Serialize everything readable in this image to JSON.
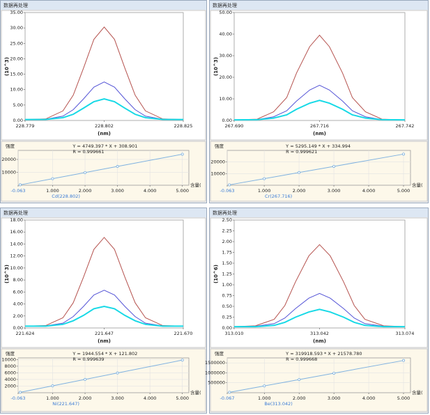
{
  "window_titles": [
    "数据再处理",
    "数据再处理",
    "数据再处理",
    "数据再处理"
  ],
  "chart_data": [
    {
      "type": "line",
      "ylabel": "(10^3)",
      "xlabel": "(nm)",
      "xlim": [
        228.779,
        228.825
      ],
      "xticks": [
        228.779,
        228.802,
        228.825
      ],
      "ylim": [
        0,
        35
      ],
      "yticks": [
        {
          "value": 0,
          "label": "0.00"
        },
        {
          "value": 5,
          "label": "5.00"
        },
        {
          "value": 10,
          "label": "10.00"
        },
        {
          "value": 15,
          "label": "15.00"
        },
        {
          "value": 20,
          "label": "20.00"
        },
        {
          "value": 25,
          "label": "25.00"
        },
        {
          "value": 30,
          "label": "30.00"
        },
        {
          "value": 35,
          "label": "35.00"
        }
      ],
      "x": [
        228.779,
        228.785,
        228.79,
        228.793,
        228.796,
        228.799,
        228.802,
        228.805,
        228.808,
        228.811,
        228.814,
        228.819,
        228.825
      ],
      "series": [
        {
          "color": "#b5524e",
          "values": [
            0.3,
            0.5,
            3.1,
            8.2,
            17.0,
            26.3,
            30.3,
            26.3,
            17.0,
            8.2,
            3.1,
            0.5,
            0.3
          ]
        },
        {
          "color": "#5454d6",
          "values": [
            0.3,
            0.4,
            1.4,
            3.5,
            7.0,
            10.8,
            12.5,
            10.8,
            7.0,
            3.5,
            1.4,
            0.4,
            0.3
          ]
        },
        {
          "color": "#17d9e6",
          "values": [
            0.3,
            0.35,
            0.9,
            2.0,
            4.0,
            6.1,
            7.0,
            6.1,
            4.0,
            2.0,
            0.9,
            0.35,
            0.3
          ]
        }
      ]
    },
    {
      "type": "line",
      "ylabel": "强度",
      "xlabel": "含量(",
      "caption": "Cd(228.802)",
      "grid": true,
      "markers": true,
      "annotations": [
        "Y = 4749.397 * X + 308.901",
        "R = 0.999661"
      ],
      "xlim": [
        -0.063,
        5.2
      ],
      "xticks": [
        -0.063,
        {
          "value": 1,
          "label": "1.000"
        },
        {
          "value": 2,
          "label": "2.000"
        },
        {
          "value": 3,
          "label": "3.000"
        },
        {
          "value": 4,
          "label": "4.000"
        },
        {
          "value": 5,
          "label": "5.000"
        }
      ],
      "ylim": [
        0,
        27000
      ],
      "yticks": [
        10000,
        20000
      ],
      "x": [
        0,
        1,
        2,
        3,
        5
      ],
      "series": [
        {
          "color": "#7fb2e0",
          "values": [
            309,
            5058,
            9808,
            14557,
            24056
          ]
        }
      ]
    },
    {
      "type": "line",
      "ylabel": "(10^3)",
      "xlabel": "(nm)",
      "xlim": [
        267.69,
        267.742
      ],
      "xticks": [
        {
          "value": 267.69,
          "label": "267.690"
        },
        267.716,
        267.742
      ],
      "ylim": [
        0,
        50
      ],
      "yticks": [
        {
          "value": 0,
          "label": "0.00"
        },
        {
          "value": 10,
          "label": "10.00"
        },
        {
          "value": 20,
          "label": "20.00"
        },
        {
          "value": 30,
          "label": "30.00"
        },
        {
          "value": 40,
          "label": "40.00"
        },
        {
          "value": 50,
          "label": "50.00"
        }
      ],
      "x": [
        267.69,
        267.697,
        267.702,
        267.706,
        267.709,
        267.713,
        267.716,
        267.719,
        267.723,
        267.726,
        267.73,
        267.735,
        267.742
      ],
      "series": [
        {
          "color": "#b5524e",
          "values": [
            0.3,
            0.6,
            4.0,
            10.6,
            22.0,
            34.2,
            39.5,
            34.2,
            22.0,
            10.6,
            4.0,
            0.6,
            0.3
          ]
        },
        {
          "color": "#5454d6",
          "values": [
            0.3,
            0.4,
            1.7,
            4.5,
            9.0,
            14.1,
            16.3,
            14.1,
            9.0,
            4.5,
            1.7,
            0.4,
            0.3
          ]
        },
        {
          "color": "#17d9e6",
          "values": [
            0.3,
            0.35,
            1.1,
            2.6,
            5.2,
            8.0,
            9.3,
            8.0,
            5.2,
            2.6,
            1.1,
            0.35,
            0.3
          ]
        }
      ]
    },
    {
      "type": "line",
      "ylabel": "强度",
      "xlabel": "含量(",
      "caption": "Cr(267.716)",
      "grid": true,
      "markers": true,
      "annotations": [
        "Y = 5295.149 * X + 334.994",
        "R = 0.999621"
      ],
      "xlim": [
        -0.063,
        5.2
      ],
      "xticks": [
        -0.063,
        {
          "value": 1,
          "label": "1.000"
        },
        {
          "value": 2,
          "label": "2.000"
        },
        {
          "value": 3,
          "label": "3.000"
        },
        {
          "value": 4,
          "label": "4.000"
        },
        {
          "value": 5,
          "label": "5.000"
        }
      ],
      "ylim": [
        0,
        30000
      ],
      "yticks": [
        10000,
        20000
      ],
      "x": [
        0,
        1,
        2,
        3,
        5
      ],
      "series": [
        {
          "color": "#7fb2e0",
          "values": [
            335,
            5630,
            10925,
            16220,
            26811
          ]
        }
      ]
    },
    {
      "type": "line",
      "ylabel": "(10^3)",
      "xlabel": "(nm)",
      "xlim": [
        221.624,
        221.67
      ],
      "xticks": [
        221.624,
        221.647,
        {
          "value": 221.67,
          "label": "221.670"
        }
      ],
      "ylim": [
        0,
        18
      ],
      "yticks": [
        {
          "value": 0,
          "label": "0.00"
        },
        {
          "value": 2,
          "label": "2.00"
        },
        {
          "value": 4,
          "label": "4.00"
        },
        {
          "value": 6,
          "label": "6.00"
        },
        {
          "value": 8,
          "label": "8.00"
        },
        {
          "value": 10,
          "label": "10.00"
        },
        {
          "value": 12,
          "label": "12.00"
        },
        {
          "value": 14,
          "label": "14.00"
        },
        {
          "value": 16,
          "label": "16.00"
        },
        {
          "value": 18,
          "label": "18.00"
        }
      ],
      "x": [
        221.624,
        221.63,
        221.635,
        221.638,
        221.641,
        221.644,
        221.647,
        221.65,
        221.653,
        221.656,
        221.659,
        221.664,
        221.67
      ],
      "series": [
        {
          "color": "#b5524e",
          "values": [
            0.3,
            0.4,
            1.7,
            4.2,
            8.5,
            13.1,
            15.1,
            13.1,
            8.5,
            4.2,
            1.7,
            0.4,
            0.3
          ]
        },
        {
          "color": "#5454d6",
          "values": [
            0.3,
            0.35,
            0.8,
            1.9,
            3.6,
            5.5,
            6.3,
            5.5,
            3.6,
            1.9,
            0.8,
            0.35,
            0.3
          ]
        },
        {
          "color": "#17d9e6",
          "values": [
            0.3,
            0.3,
            0.6,
            1.2,
            2.1,
            3.2,
            3.6,
            3.2,
            2.1,
            1.2,
            0.6,
            0.3,
            0.3
          ]
        }
      ]
    },
    {
      "type": "line",
      "ylabel": "强度",
      "xlabel": "含量(",
      "caption": "Ni(221.647)",
      "grid": true,
      "markers": true,
      "annotations": [
        "Y = 1944.554 * X + 121.802",
        "R = 0.999639"
      ],
      "xlim": [
        -0.063,
        5.2
      ],
      "xticks": [
        -0.063,
        {
          "value": 1,
          "label": "1.000"
        },
        {
          "value": 2,
          "label": "2.000"
        },
        {
          "value": 3,
          "label": "3.000"
        },
        {
          "value": 4,
          "label": "4.000"
        },
        {
          "value": 5,
          "label": "5.000"
        }
      ],
      "ylim": [
        0,
        10500
      ],
      "yticks": [
        2000,
        4000,
        6000,
        8000,
        10000
      ],
      "x": [
        0,
        1,
        2,
        3,
        5
      ],
      "series": [
        {
          "color": "#7fb2e0",
          "values": [
            122,
            2066,
            4011,
            5956,
            9845
          ]
        }
      ]
    },
    {
      "type": "line",
      "ylabel": "(10^6)",
      "xlabel": "(nm)",
      "xlim": [
        313.01,
        313.074
      ],
      "xticks": [
        {
          "value": 313.01,
          "label": "313.010"
        },
        313.042,
        313.074
      ],
      "ylim": [
        0,
        2.5
      ],
      "yticks": [
        {
          "value": 0,
          "label": "0.00"
        },
        {
          "value": 0.25,
          "label": "0.25"
        },
        {
          "value": 0.5,
          "label": "0.50"
        },
        {
          "value": 0.75,
          "label": "0.75"
        },
        {
          "value": 1,
          "label": "1.00"
        },
        {
          "value": 1.25,
          "label": "1.25"
        },
        {
          "value": 1.5,
          "label": "1.50"
        },
        {
          "value": 1.75,
          "label": "1.75"
        },
        {
          "value": 2,
          "label": "2.00"
        },
        {
          "value": 2.25,
          "label": "2.25"
        },
        {
          "value": 2.5,
          "label": "2.50"
        }
      ],
      "x": [
        313.01,
        313.018,
        313.025,
        313.029,
        313.033,
        313.038,
        313.042,
        313.046,
        313.051,
        313.055,
        313.059,
        313.066,
        313.074
      ],
      "series": [
        {
          "color": "#b5524e",
          "values": [
            0.03,
            0.05,
            0.2,
            0.52,
            1.07,
            1.67,
            1.93,
            1.67,
            1.07,
            0.52,
            0.2,
            0.05,
            0.03
          ]
        },
        {
          "color": "#5454d6",
          "values": [
            0.03,
            0.04,
            0.1,
            0.23,
            0.45,
            0.69,
            0.8,
            0.69,
            0.45,
            0.23,
            0.1,
            0.04,
            0.03
          ]
        },
        {
          "color": "#17d9e6",
          "values": [
            0.03,
            0.03,
            0.06,
            0.13,
            0.25,
            0.37,
            0.43,
            0.37,
            0.25,
            0.13,
            0.06,
            0.03,
            0.03
          ]
        }
      ]
    },
    {
      "type": "line",
      "ylabel": "强度",
      "xlabel": "含量(",
      "caption": "Be(313.042)",
      "grid": true,
      "markers": true,
      "annotations": [
        "Y = 319918.593 * X + 21578.780",
        "R = 0.999668"
      ],
      "xlim": [
        -0.067,
        5.2
      ],
      "xticks": [
        -0.067,
        {
          "value": 1,
          "label": "1.000"
        },
        {
          "value": 2,
          "label": "2.000"
        },
        {
          "value": 3,
          "label": "3.000"
        },
        {
          "value": 4,
          "label": "4.000"
        },
        {
          "value": 5,
          "label": "5.000"
        }
      ],
      "ylim": [
        0,
        1750000
      ],
      "yticks": [
        500000,
        1000000,
        1500000
      ],
      "x": [
        0,
        1,
        2,
        3,
        5
      ],
      "series": [
        {
          "color": "#7fb2e0",
          "values": [
            21579,
            341497,
            661416,
            981334,
            1621172
          ]
        }
      ]
    }
  ]
}
